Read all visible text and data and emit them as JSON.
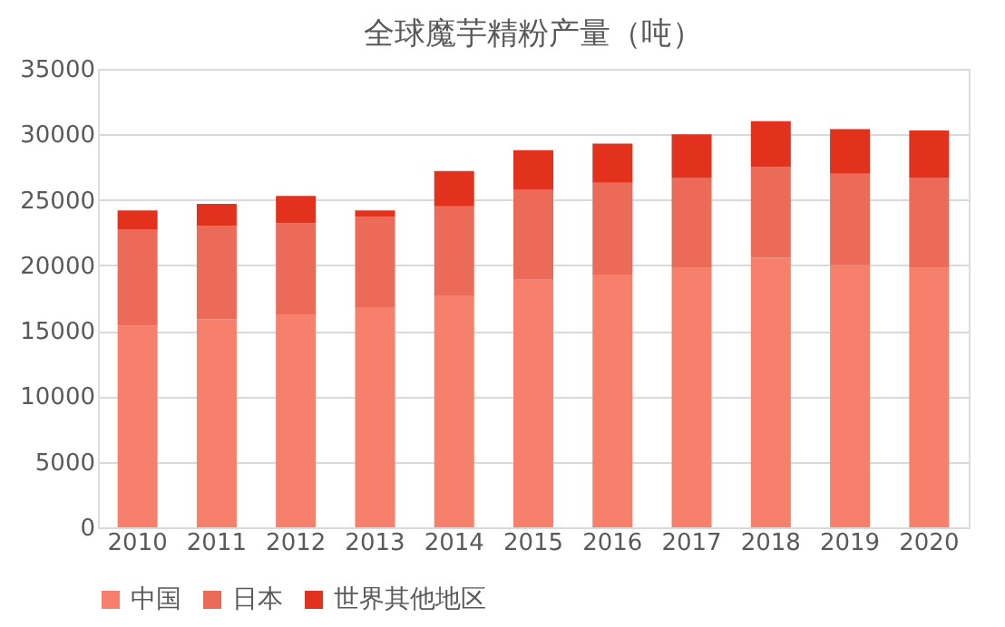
{
  "chart_data": {
    "type": "bar",
    "title": "全球魔芋精粉产量（吨）",
    "stacked": true,
    "categories": [
      "2010",
      "2011",
      "2012",
      "2013",
      "2014",
      "2015",
      "2016",
      "2017",
      "2018",
      "2019",
      "2020"
    ],
    "series": [
      {
        "name": "中国",
        "color": "#f7806c",
        "values": [
          15400,
          15900,
          16200,
          16800,
          17700,
          18900,
          19300,
          19800,
          20600,
          20000,
          19800
        ]
      },
      {
        "name": "日本",
        "color": "#ec6a58",
        "values": [
          7350,
          7100,
          7000,
          6900,
          6800,
          6900,
          7000,
          6900,
          6900,
          7000,
          6900
        ]
      },
      {
        "name": "世界其他地区",
        "color": "#e2311d",
        "values": [
          1450,
          1700,
          2100,
          500,
          2700,
          3000,
          3000,
          3300,
          3500,
          3400,
          3600
        ]
      }
    ],
    "ylim": [
      0,
      35000
    ],
    "yticks": [
      0,
      5000,
      10000,
      15000,
      20000,
      25000,
      30000,
      35000
    ],
    "grid": "y",
    "legend": "bottom"
  }
}
